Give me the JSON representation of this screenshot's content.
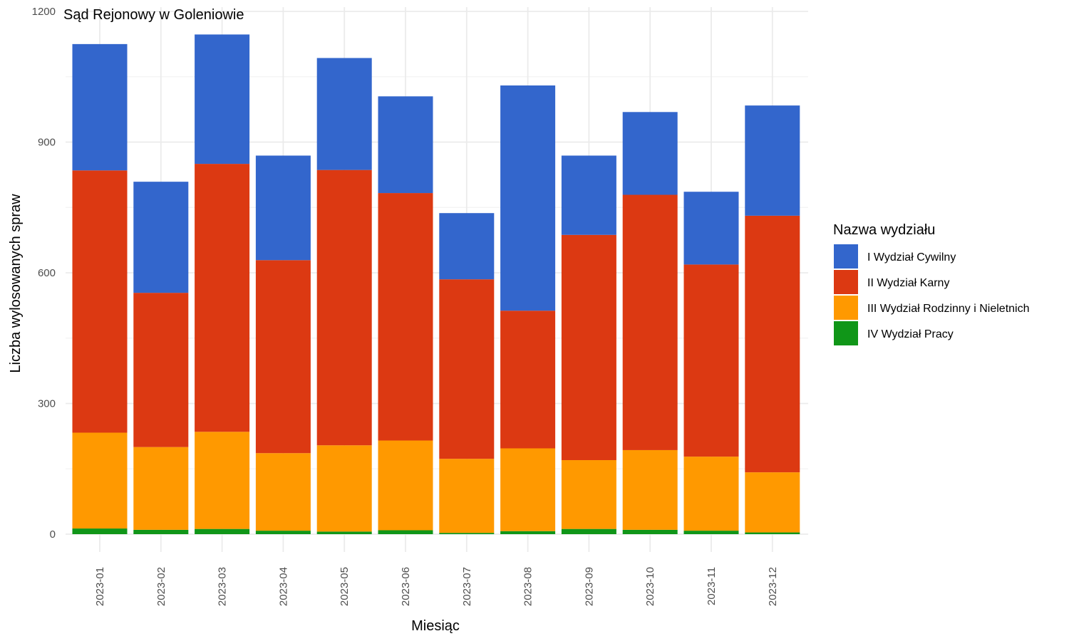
{
  "chart_data": {
    "type": "bar",
    "stacked": true,
    "title": "Sąd Rejonowy w Goleniowie",
    "xlabel": "Miesiąc",
    "ylabel": "Liczba wylosowanych spraw",
    "ylim": [
      0,
      1200
    ],
    "yticks": [
      0,
      300,
      600,
      900,
      1200
    ],
    "grid": true,
    "legend_position": "right",
    "legend_title": "Nazwa wydziału",
    "categories": [
      "2023-01",
      "2023-02",
      "2023-03",
      "2023-04",
      "2023-05",
      "2023-06",
      "2023-07",
      "2023-08",
      "2023-09",
      "2023-10",
      "2023-11",
      "2023-12"
    ],
    "series": [
      {
        "name": "I Wydział Cywilny",
        "color": "#3366cc",
        "values": [
          290,
          255,
          297,
          240,
          257,
          222,
          152,
          517,
          182,
          190,
          167,
          253
        ]
      },
      {
        "name": "II Wydział Karny",
        "color": "#dc3912",
        "values": [
          602,
          354,
          615,
          443,
          632,
          568,
          412,
          316,
          517,
          586,
          441,
          589
        ]
      },
      {
        "name": "III Wydział Rodzinny i Nieletnich",
        "color": "#ff9900",
        "values": [
          220,
          190,
          223,
          178,
          198,
          206,
          170,
          190,
          158,
          183,
          170,
          138
        ]
      },
      {
        "name": "IV Wydział Pracy",
        "color": "#109618",
        "values": [
          13,
          10,
          12,
          8,
          6,
          9,
          3,
          7,
          12,
          10,
          8,
          4
        ]
      }
    ]
  }
}
